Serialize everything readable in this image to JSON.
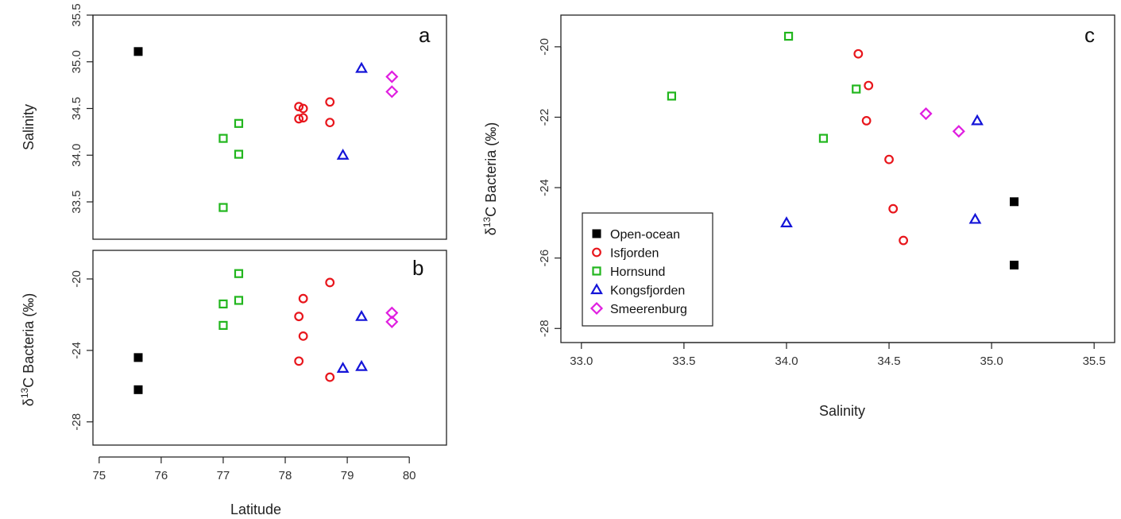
{
  "series_styles": [
    {
      "key": "open_ocean",
      "name": "Open-ocean",
      "color": "#000000",
      "marker": "filled-square"
    },
    {
      "key": "isfjorden",
      "name": "Isfjorden",
      "color": "#e8161c",
      "marker": "circle"
    },
    {
      "key": "hornsund",
      "name": "Hornsund",
      "color": "#22b61e",
      "marker": "square"
    },
    {
      "key": "kongsfjorden",
      "name": "Kongsfjorden",
      "color": "#1414d8",
      "marker": "triangle"
    },
    {
      "key": "smeerenburg",
      "name": "Smeerenburg",
      "color": "#e01ee0",
      "marker": "diamond"
    }
  ],
  "chart_data": [
    {
      "panel": "a",
      "type": "scatter",
      "xlabel": "",
      "ylabel": "Salinity",
      "xlim": [
        74.9,
        80.6
      ],
      "ylim": [
        33.1,
        35.5
      ],
      "xticks": [],
      "yticks": [
        "33.5",
        "34.0",
        "34.5",
        "35.0",
        "35.5"
      ],
      "series": [
        {
          "name": "Open-ocean",
          "x": [
            75.63
          ],
          "y": [
            35.11
          ]
        },
        {
          "name": "Isfjorden",
          "x": [
            78.22,
            78.29,
            78.22,
            78.29,
            78.72,
            78.72
          ],
          "y": [
            34.52,
            34.5,
            34.39,
            34.4,
            34.57,
            34.35
          ]
        },
        {
          "name": "Hornsund",
          "x": [
            77.0,
            77.25,
            77.25,
            77.0
          ],
          "y": [
            34.18,
            34.34,
            34.01,
            33.44
          ]
        },
        {
          "name": "Kongsfjorden",
          "x": [
            79.23,
            78.93
          ],
          "y": [
            34.93,
            34.0
          ]
        },
        {
          "name": "Smeerenburg",
          "x": [
            79.72,
            79.72
          ],
          "y": [
            34.84,
            34.68
          ]
        }
      ]
    },
    {
      "panel": "b",
      "type": "scatter",
      "xlabel": "Latitude",
      "ylabel_main": "δ",
      "ylabel_sup": "13",
      "ylabel_rest": "C Bacteria  (‰)",
      "xlim": [
        74.9,
        80.6
      ],
      "ylim": [
        -29.3,
        -18.4
      ],
      "xticks": [
        "75",
        "76",
        "77",
        "78",
        "79",
        "80"
      ],
      "yticks": [
        "-20",
        "-24",
        "-28"
      ],
      "series": [
        {
          "name": "Open-ocean",
          "x": [
            75.63,
            75.63
          ],
          "y": [
            -24.4,
            -26.2
          ]
        },
        {
          "name": "Isfjorden",
          "x": [
            78.72,
            78.29,
            78.22,
            78.29,
            78.22,
            78.72
          ],
          "y": [
            -20.2,
            -21.1,
            -22.1,
            -23.2,
            -24.6,
            -25.5
          ]
        },
        {
          "name": "Hornsund",
          "x": [
            77.25,
            77.0,
            77.25,
            77.0
          ],
          "y": [
            -19.7,
            -21.4,
            -21.2,
            -22.6
          ]
        },
        {
          "name": "Kongsfjorden",
          "x": [
            79.23,
            78.93,
            79.23
          ],
          "y": [
            -22.1,
            -25.0,
            -24.9
          ]
        },
        {
          "name": "Smeerenburg",
          "x": [
            79.72,
            79.72
          ],
          "y": [
            -21.9,
            -22.4
          ]
        }
      ]
    },
    {
      "panel": "c",
      "type": "scatter",
      "xlabel": "Salinity",
      "ylabel_main": "δ",
      "ylabel_sup": "13",
      "ylabel_rest": "C Bacteria  (‰)",
      "xlim": [
        32.9,
        35.6
      ],
      "ylim": [
        -28.4,
        -19.1
      ],
      "xticks": [
        "33.0",
        "33.5",
        "34.0",
        "34.5",
        "35.0",
        "35.5"
      ],
      "yticks": [
        "-20",
        "-22",
        "-24",
        "-26",
        "-28"
      ],
      "legend_position": "bottom-left",
      "series": [
        {
          "name": "Open-ocean",
          "x": [
            35.11,
            35.11
          ],
          "y": [
            -24.4,
            -26.2
          ]
        },
        {
          "name": "Isfjorden",
          "x": [
            34.35,
            34.4,
            34.39,
            34.5,
            34.52,
            34.57
          ],
          "y": [
            -20.2,
            -21.1,
            -22.1,
            -23.2,
            -24.6,
            -25.5
          ]
        },
        {
          "name": "Hornsund",
          "x": [
            34.01,
            33.44,
            34.34,
            34.18
          ],
          "y": [
            -19.7,
            -21.4,
            -21.2,
            -22.6
          ]
        },
        {
          "name": "Kongsfjorden",
          "x": [
            34.93,
            34.0,
            34.92
          ],
          "y": [
            -22.1,
            -25.0,
            -24.9
          ]
        },
        {
          "name": "Smeerenburg",
          "x": [
            34.68,
            34.84
          ],
          "y": [
            -21.9,
            -22.4
          ]
        }
      ]
    }
  ]
}
